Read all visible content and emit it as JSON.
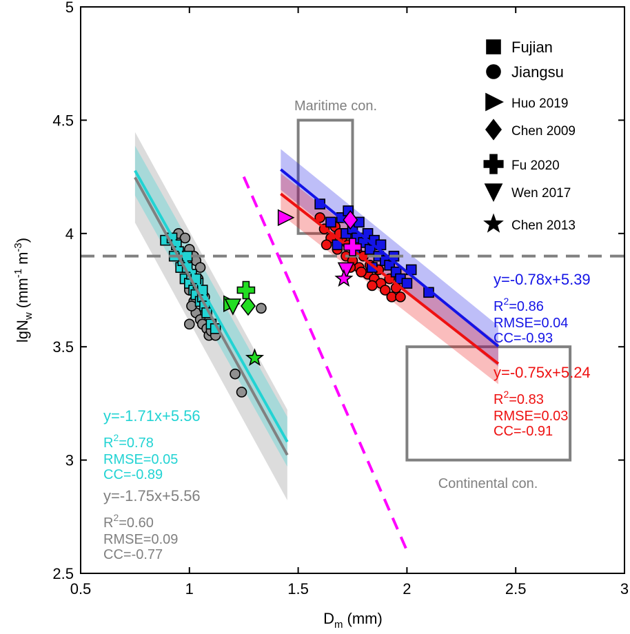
{
  "chart_data": {
    "type": "scatter",
    "xlabel": "D",
    "xlabel_sub": "m",
    "xlabel_unit": "(mm)",
    "ylabel": "lgN",
    "ylabel_sub": "w",
    "ylabel_unit_a": "(mm",
    "ylabel_sup_a": "-1",
    "ylabel_unit_b": "m",
    "ylabel_sup_b": "-3",
    "ylabel_close": ")",
    "xlim": [
      0.5,
      3
    ],
    "ylim": [
      2.5,
      5
    ],
    "xticks": [
      {
        "value": 0.5,
        "label": "0.5"
      },
      {
        "value": 1,
        "label": "1"
      },
      {
        "value": 1.5,
        "label": "1.5"
      },
      {
        "value": 2,
        "label": "2"
      },
      {
        "value": 2.5,
        "label": "2.5"
      },
      {
        "value": 3,
        "label": "3"
      }
    ],
    "yticks": [
      {
        "value": 2.5,
        "label": "2.5"
      },
      {
        "value": 3,
        "label": "3"
      },
      {
        "value": 3.5,
        "label": "3.5"
      },
      {
        "value": 4,
        "label": "4"
      },
      {
        "value": 4.5,
        "label": "4.5"
      },
      {
        "value": 5,
        "label": "5"
      }
    ],
    "colors": {
      "blue": "#1414e6",
      "red": "#ee1111",
      "cyan": "#22d3d3",
      "gray": "#808080",
      "magenta": "#ff00ff",
      "green": "#22dd22",
      "dashed_gray": "#888888"
    },
    "reference_line": {
      "y": 3.9,
      "style": "dashed",
      "color": "#808080"
    },
    "dashed_magenta_line": {
      "x": [
        1.25,
        2.0
      ],
      "y": [
        4.25,
        2.6
      ]
    },
    "boxes": [
      {
        "name": "maritime",
        "label": "Maritime con.",
        "x": [
          1.5,
          1.75
        ],
        "y": [
          4.0,
          4.5
        ]
      },
      {
        "name": "continental",
        "label": "Continental con.",
        "x": [
          2.0,
          2.75
        ],
        "y": [
          3.0,
          3.5
        ]
      }
    ],
    "fits": [
      {
        "name": "fujian-fit",
        "color": "#1414e6",
        "x": [
          1.42,
          2.42
        ],
        "slope": -0.78,
        "intercept": 5.39,
        "band": 0.09,
        "equation": "y=-0.78x+5.39",
        "r2_base": "R",
        "r2_sup": "2",
        "r2_value": "=0.86",
        "rmse": "RMSE=0.04",
        "cc": "CC=-0.93"
      },
      {
        "name": "jiangsu-fit",
        "color": "#ee1111",
        "x": [
          1.42,
          2.42
        ],
        "slope": -0.75,
        "intercept": 5.24,
        "band": 0.09,
        "equation": "y=-0.75x+5.24",
        "r2_base": "R",
        "r2_sup": "2",
        "r2_value": "=0.83",
        "rmse": "RMSE=0.03",
        "cc": "CC=-0.91"
      },
      {
        "name": "cyan-fit",
        "color": "#22d3d3",
        "x": [
          0.75,
          1.45
        ],
        "slope": -1.71,
        "intercept": 5.56,
        "band": 0.11,
        "equation": "y=-1.71x+5.56",
        "r2_base": "R",
        "r2_sup": "2",
        "r2_value": "=0.78",
        "rmse": "RMSE=0.05",
        "cc": "CC=-0.89"
      },
      {
        "name": "gray-fit",
        "color": "#808080",
        "x": [
          0.75,
          1.45
        ],
        "slope": -1.75,
        "intercept": 5.56,
        "band": 0.2,
        "equation": "y=-1.75x+5.56",
        "r2_base": "R",
        "r2_sup": "2",
        "r2_value": "=0.60",
        "rmse": "RMSE=0.09",
        "cc": "CC=-0.77"
      }
    ],
    "series": [
      {
        "name": "Fujian",
        "marker": "square",
        "fill": "#1414e6",
        "points": [
          [
            1.6,
            4.13
          ],
          [
            1.65,
            4.05
          ],
          [
            1.7,
            4.07
          ],
          [
            1.72,
            4.0
          ],
          [
            1.73,
            4.1
          ],
          [
            1.75,
            4.02
          ],
          [
            1.77,
            3.98
          ],
          [
            1.78,
            4.05
          ],
          [
            1.8,
            3.96
          ],
          [
            1.82,
            4.0
          ],
          [
            1.83,
            3.93
          ],
          [
            1.85,
            3.97
          ],
          [
            1.87,
            3.9
          ],
          [
            1.88,
            3.95
          ],
          [
            1.9,
            3.88
          ],
          [
            1.92,
            3.86
          ],
          [
            1.94,
            3.9
          ],
          [
            1.95,
            3.83
          ],
          [
            1.97,
            3.8
          ],
          [
            2.0,
            3.78
          ],
          [
            2.02,
            3.84
          ],
          [
            2.1,
            3.74
          ],
          [
            1.68,
            3.95
          ],
          [
            1.76,
            3.92
          ],
          [
            1.84,
            3.85
          ]
        ]
      },
      {
        "name": "Jiangsu",
        "marker": "circle",
        "fill": "#ee1111",
        "points": [
          [
            1.6,
            4.07
          ],
          [
            1.62,
            4.02
          ],
          [
            1.65,
            3.98
          ],
          [
            1.67,
            4.03
          ],
          [
            1.68,
            3.93
          ],
          [
            1.7,
            3.97
          ],
          [
            1.72,
            3.9
          ],
          [
            1.73,
            3.95
          ],
          [
            1.75,
            3.88
          ],
          [
            1.77,
            3.92
          ],
          [
            1.78,
            3.85
          ],
          [
            1.8,
            3.9
          ],
          [
            1.82,
            3.82
          ],
          [
            1.83,
            3.86
          ],
          [
            1.85,
            3.8
          ],
          [
            1.87,
            3.84
          ],
          [
            1.88,
            3.78
          ],
          [
            1.9,
            3.75
          ],
          [
            1.92,
            3.8
          ],
          [
            1.93,
            3.72
          ],
          [
            1.95,
            3.76
          ],
          [
            1.97,
            3.72
          ],
          [
            1.63,
            3.95
          ],
          [
            1.69,
            4.0
          ],
          [
            1.79,
            3.83
          ],
          [
            1.84,
            3.77
          ],
          [
            1.74,
            3.85
          ]
        ]
      },
      {
        "name": "Cyan group",
        "marker": "square",
        "fill": "#22d3d3",
        "points": [
          [
            0.89,
            3.97
          ],
          [
            0.92,
            3.98
          ],
          [
            0.94,
            3.95
          ],
          [
            0.95,
            3.92
          ],
          [
            0.96,
            3.85
          ],
          [
            0.97,
            3.88
          ],
          [
            0.98,
            3.8
          ],
          [
            0.99,
            3.9
          ],
          [
            1.0,
            3.78
          ],
          [
            1.01,
            3.82
          ],
          [
            1.02,
            3.75
          ],
          [
            1.03,
            3.73
          ],
          [
            1.04,
            3.78
          ],
          [
            1.05,
            3.7
          ],
          [
            1.06,
            3.72
          ],
          [
            1.07,
            3.68
          ],
          [
            1.08,
            3.65
          ],
          [
            1.1,
            3.6
          ],
          [
            1.12,
            3.58
          ],
          [
            0.93,
            3.9
          ],
          [
            0.99,
            3.85
          ],
          [
            1.03,
            3.8
          ],
          [
            1.06,
            3.75
          ]
        ]
      },
      {
        "name": "Gray group",
        "marker": "circle",
        "fill": "#909090",
        "points": [
          [
            0.95,
            4.0
          ],
          [
            0.98,
            3.98
          ],
          [
            1.0,
            3.93
          ],
          [
            1.02,
            3.9
          ],
          [
            1.03,
            3.88
          ],
          [
            1.05,
            3.85
          ],
          [
            1.04,
            3.8
          ],
          [
            1.0,
            3.75
          ],
          [
            1.02,
            3.7
          ],
          [
            1.03,
            3.65
          ],
          [
            1.05,
            3.62
          ],
          [
            1.06,
            3.6
          ],
          [
            1.08,
            3.58
          ],
          [
            1.09,
            3.55
          ],
          [
            1.1,
            3.57
          ],
          [
            1.12,
            3.55
          ],
          [
            1.0,
            3.6
          ],
          [
            1.01,
            3.68
          ],
          [
            1.33,
            3.67
          ],
          [
            1.21,
            3.38
          ],
          [
            1.24,
            3.3
          ],
          [
            0.98,
            3.85
          ],
          [
            1.07,
            3.72
          ]
        ]
      }
    ],
    "special_markers": [
      {
        "name": "Huo 2019",
        "marker": "triangle-right",
        "fill": "#ff00ff",
        "x": 1.44,
        "y": 4.07
      },
      {
        "name": "Chen 2009",
        "marker": "diamond",
        "fill": "#ff00ff",
        "x": 1.74,
        "y": 4.06
      },
      {
        "name": "Fu 2020",
        "marker": "cross",
        "fill": "#ff00ff",
        "x": 1.75,
        "y": 3.94
      },
      {
        "name": "Wen 2017",
        "marker": "triangle-down",
        "fill": "#ff00ff",
        "x": 1.72,
        "y": 3.84
      },
      {
        "name": "Chen 2013",
        "marker": "star",
        "fill": "#ff00ff",
        "x": 1.71,
        "y": 3.8
      },
      {
        "name": "Chen 2009",
        "marker": "diamond",
        "fill": "#22dd22",
        "x": 1.27,
        "y": 3.68
      },
      {
        "name": "Fu 2020",
        "marker": "cross",
        "fill": "#22dd22",
        "x": 1.26,
        "y": 3.75
      },
      {
        "name": "Huo 2019",
        "marker": "triangle-right",
        "fill": "#22dd22",
        "x": 1.19,
        "y": 3.69
      },
      {
        "name": "Wen 2017",
        "marker": "triangle-down",
        "fill": "#22dd22",
        "x": 1.2,
        "y": 3.68
      },
      {
        "name": "Chen 2013",
        "marker": "star",
        "fill": "#22dd22",
        "x": 1.3,
        "y": 3.45
      }
    ],
    "legend": {
      "placement": "top-right",
      "items": [
        {
          "name": "Fujian",
          "marker": "square"
        },
        {
          "name": "Jiangsu",
          "marker": "circle"
        },
        {
          "name": "Huo 2019",
          "marker": "triangle-right"
        },
        {
          "name": "Chen 2009",
          "marker": "diamond"
        },
        {
          "name": "Fu 2020",
          "marker": "cross"
        },
        {
          "name": "Wen 2017",
          "marker": "triangle-down"
        },
        {
          "name": "Chen 2013",
          "marker": "star"
        }
      ]
    }
  }
}
